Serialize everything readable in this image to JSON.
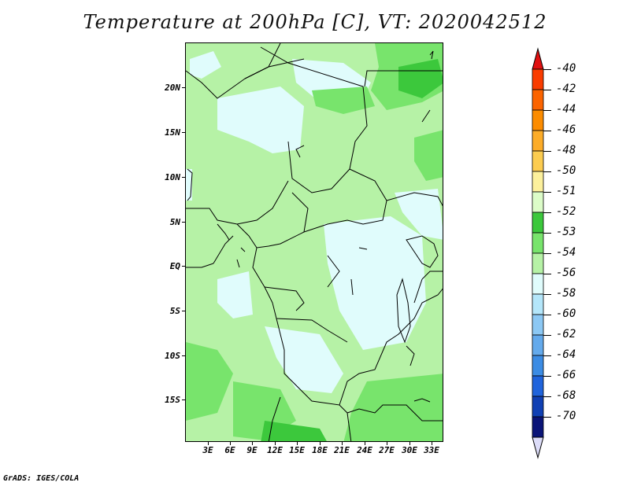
{
  "title": "Temperature at 200hPa [C], VT: 2020042512",
  "lat_labels": [
    "20N",
    "15N",
    "10N",
    "5N",
    "EQ",
    "5S",
    "10S",
    "15S"
  ],
  "lon_labels": [
    "3E",
    "6E",
    "9E",
    "12E",
    "15E",
    "18E",
    "21E",
    "24E",
    "27E",
    "30E",
    "33E"
  ],
  "colorbar": {
    "labels": [
      "-40",
      "-42",
      "-44",
      "-46",
      "-48",
      "-50",
      "-51",
      "-52",
      "-53",
      "-54",
      "-56",
      "-58",
      "-60",
      "-62",
      "-64",
      "-66",
      "-68",
      "-70"
    ],
    "colors": [
      "#fa3c00",
      "#fc6400",
      "#fc8c00",
      "#fcac28",
      "#fccc50",
      "#fcf09c",
      "#dcfcc8",
      "#3cc83c",
      "#78e46c",
      "#b6f2a6",
      "#e0fcfc",
      "#b4e6fa",
      "#8cc8f4",
      "#64aaec",
      "#3c8ce4",
      "#2064dc",
      "#1040b4",
      "#0a1478"
    ],
    "top_arrow_color": "#e01010",
    "bottom_arrow_color": "#dcdcf8"
  },
  "credit": "GrADS: IGES/COLA"
}
